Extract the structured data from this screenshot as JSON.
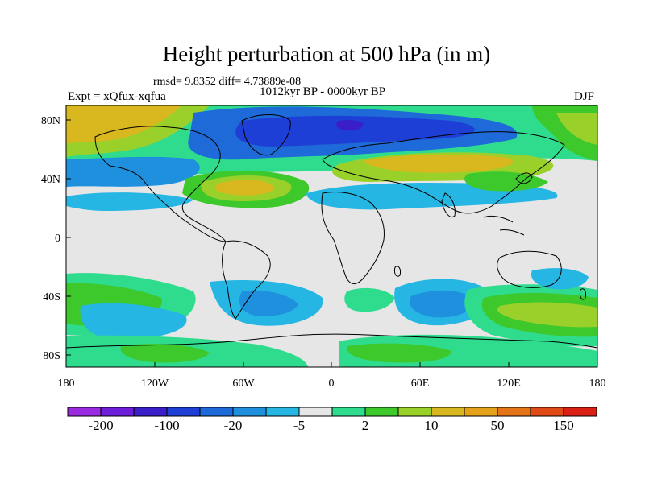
{
  "title": "Height perturbation at 500 hPa (in m)",
  "stats": "rmsd= 9.8352 diff= 4.73889e-08",
  "period": "1012kyr BP - 0000kyr BP",
  "experiment": "Expt = xQfux-xqfua",
  "season": "DJF",
  "map": {
    "lat_ticks": [
      "80N",
      "40N",
      "0",
      "40S",
      "80S"
    ],
    "lon_ticks": [
      "180",
      "120W",
      "60W",
      "0",
      "60E",
      "120E",
      "180"
    ]
  },
  "colorbar": {
    "colors": [
      "#9b2be0",
      "#6c1ed8",
      "#3a1fc9",
      "#1e3fd6",
      "#1d6ad8",
      "#1f90dd",
      "#25b6e4",
      "#e6e6e6",
      "#2fdc8e",
      "#3dc82c",
      "#9ad02a",
      "#d8b81e",
      "#e5a11a",
      "#e37518",
      "#df4a16",
      "#da1f14"
    ],
    "labels": [
      "-200",
      "-100",
      "-20",
      "-5",
      "2",
      "10",
      "50",
      "150"
    ]
  }
}
